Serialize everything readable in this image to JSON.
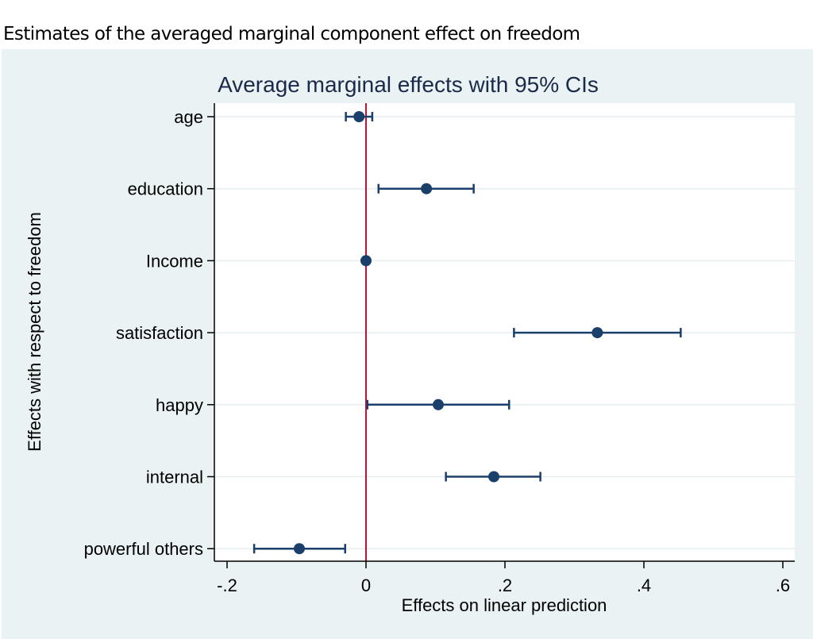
{
  "page": {
    "heading": "Estimates of the averaged marginal component effect on freedom"
  },
  "colors": {
    "background": "#eaf2f3",
    "plot_background": "#ffffff",
    "marker": "#1a3f6b",
    "reference_line": "#c8102e",
    "gridline": "#e6eef0"
  },
  "chart_data": {
    "type": "scatter",
    "subtype": "coefficient-plot-with-ci",
    "title": "Average marginal effects with 95% CIs",
    "xlabel": "Effects on linear prediction",
    "ylabel": "Effects with respect to freedom",
    "xlim": [
      -0.22,
      0.62
    ],
    "xticks": [
      -0.2,
      0,
      0.2,
      0.4,
      0.6
    ],
    "xtick_labels": [
      "-.2",
      "0",
      ".2",
      ".4",
      ".6"
    ],
    "reference_line_x": 0,
    "grid": "horizontal",
    "categories": [
      "age",
      "education",
      "Income",
      "satisfaction",
      "happy",
      "internal",
      "powerful others"
    ],
    "series": [
      {
        "name": "Average marginal effect",
        "estimates": [
          -0.01,
          0.087,
          0.0,
          0.333,
          0.104,
          0.184,
          -0.096
        ],
        "ci_low": [
          -0.029,
          0.018,
          0.0,
          0.213,
          0.002,
          0.115,
          -0.161
        ],
        "ci_high": [
          0.009,
          0.155,
          0.0,
          0.453,
          0.206,
          0.251,
          -0.03
        ]
      }
    ]
  }
}
